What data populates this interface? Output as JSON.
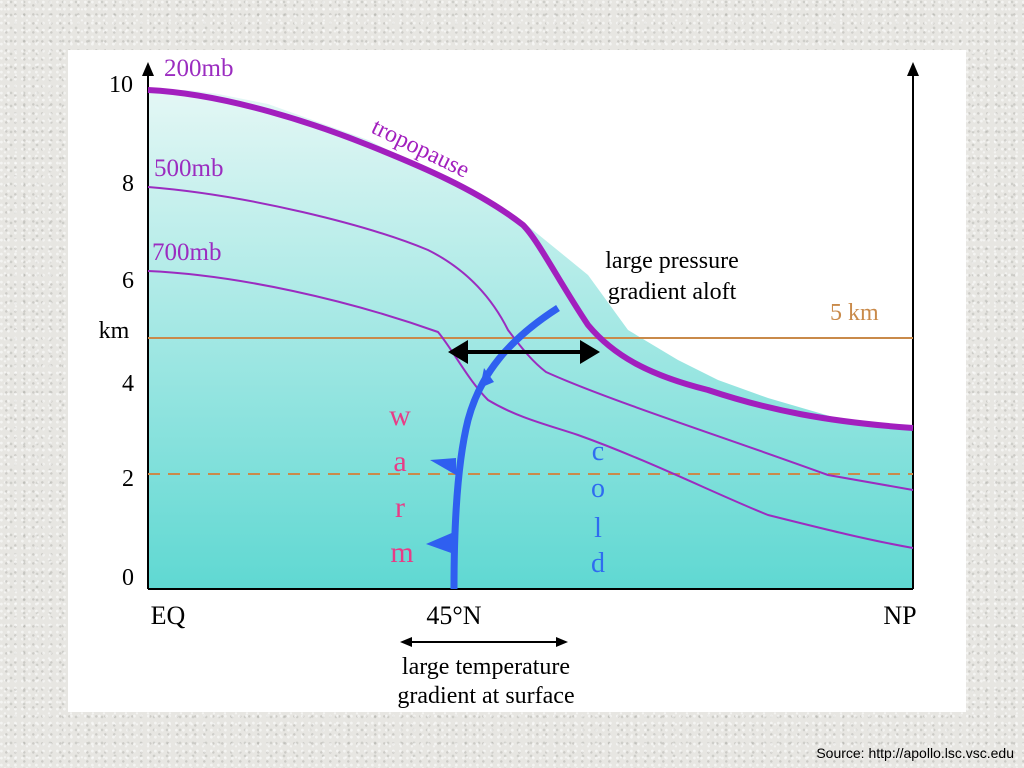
{
  "colors": {
    "tropopause": "#a21fbe",
    "isobar": "#9b2cc0",
    "altitude_line": "#c98a4a",
    "front": "#2f5ff0",
    "warm_text": "#e83c87",
    "cold_text": "#2f6cf0",
    "fill_top": "#e4f7f5",
    "fill_bottom": "#5fd8d2"
  },
  "y_axis": {
    "ticks": [
      "0",
      "2",
      "4",
      "6",
      "8",
      "10"
    ],
    "unit_label": "km"
  },
  "x_axis": {
    "left_label": "EQ",
    "middle_label": "45°N",
    "right_label": "NP"
  },
  "labels": {
    "level_200": "200mb",
    "level_500": "500mb",
    "level_700": "700mb",
    "tropopause": "tropopause",
    "pressure_line1": "large pressure",
    "pressure_line2": "gradient aloft",
    "five_km": "5 km",
    "temp_line1": "large temperature",
    "temp_line2": "gradient at surface",
    "warm_letters": [
      "w",
      "a",
      "r",
      "m"
    ],
    "cold_letters": [
      "c",
      "o",
      "l",
      "d"
    ]
  },
  "source": "Source: http://apollo.lsc.vsc.edu"
}
